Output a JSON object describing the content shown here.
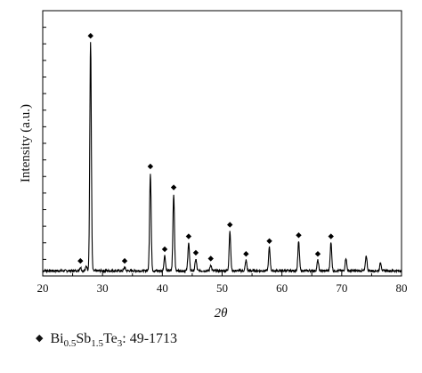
{
  "chart_data": {
    "type": "line",
    "title": "",
    "xlabel": "2θ",
    "ylabel": "Intensity (a.u.)",
    "xlim": [
      20,
      80
    ],
    "ylim": [
      0,
      100
    ],
    "y_tick_count": 16,
    "grid": false,
    "x_ticks": [
      20,
      30,
      40,
      50,
      60,
      70,
      80
    ],
    "x_tick_labels": [
      "20",
      "30",
      "40",
      "50",
      "60",
      "70",
      "80"
    ],
    "peaks": [
      {
        "x": 26.3,
        "y": 1.5
      },
      {
        "x": 27.3,
        "y": 2.0
      },
      {
        "x": 28.0,
        "y": 98.0
      },
      {
        "x": 33.7,
        "y": 1.5
      },
      {
        "x": 38.0,
        "y": 42.0
      },
      {
        "x": 40.4,
        "y": 6.5
      },
      {
        "x": 41.9,
        "y": 33.0
      },
      {
        "x": 44.4,
        "y": 12.0
      },
      {
        "x": 45.6,
        "y": 5.0
      },
      {
        "x": 48.1,
        "y": 2.5
      },
      {
        "x": 51.3,
        "y": 17.0
      },
      {
        "x": 54.0,
        "y": 4.5
      },
      {
        "x": 57.9,
        "y": 10.0
      },
      {
        "x": 62.8,
        "y": 12.5
      },
      {
        "x": 66.0,
        "y": 4.5
      },
      {
        "x": 68.2,
        "y": 12.0
      },
      {
        "x": 70.7,
        "y": 5.5
      },
      {
        "x": 74.1,
        "y": 6.5
      },
      {
        "x": 76.5,
        "y": 3.5
      }
    ],
    "series": [
      {
        "name": "Bi0.5Sb1.5Te3: 49-1713",
        "color": "#000000",
        "marker": "diamond"
      }
    ],
    "marked_peaks_x": [
      26.3,
      28.0,
      33.7,
      38.0,
      40.4,
      41.9,
      44.4,
      45.6,
      48.1,
      51.3,
      54.0,
      57.9,
      62.8,
      66.0,
      68.2
    ],
    "legend": {
      "placement": "bottom",
      "parts": [
        {
          "t": "Bi",
          "s": "0.5"
        },
        {
          "t": "Sb",
          "s": "1.5"
        },
        {
          "t": "Te",
          "s": "3"
        },
        {
          "t": ": 49-1713",
          "s": ""
        }
      ]
    }
  }
}
